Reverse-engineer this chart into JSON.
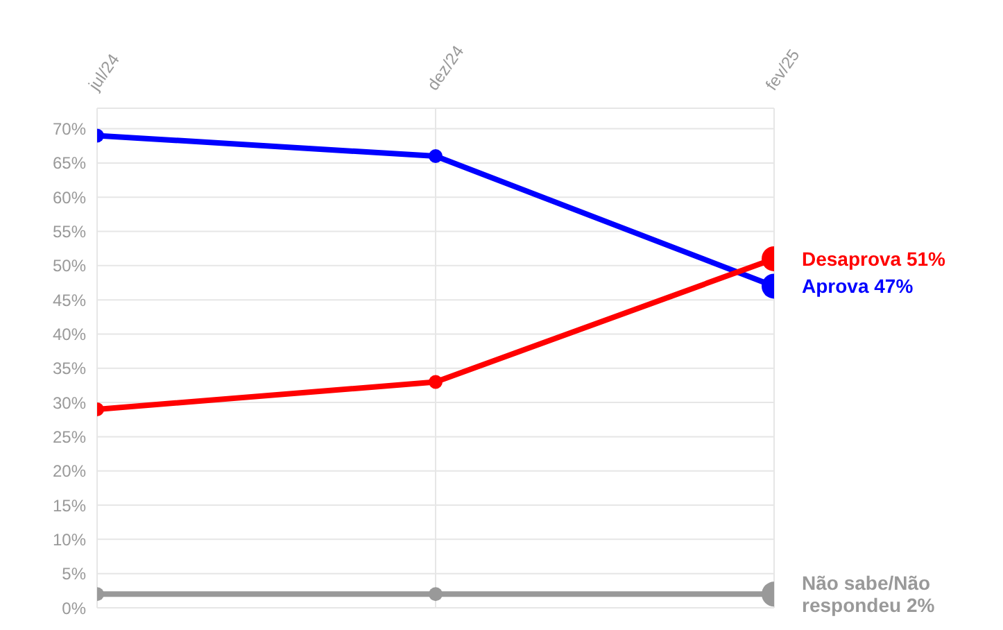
{
  "chart_data": {
    "type": "line",
    "categories": [
      "jul/24",
      "dez/24",
      "fev/25"
    ],
    "series": [
      {
        "name": "Aprova",
        "color": "#0000ff",
        "values": [
          69,
          66,
          47
        ],
        "value_labels": [
          null,
          null,
          "47%"
        ]
      },
      {
        "name": "Desaprova",
        "color": "#ff0000",
        "values": [
          29,
          33,
          51
        ],
        "value_labels": [
          null,
          null,
          "51%"
        ]
      },
      {
        "name": "Não sabe/Não respondeu",
        "color": "#999999",
        "values": [
          2,
          2,
          2
        ],
        "value_labels": [
          null,
          null,
          "2%"
        ]
      }
    ],
    "ylim": [
      0,
      73
    ],
    "yticks": [
      {
        "value": 0,
        "label": "0%"
      },
      {
        "value": 5,
        "label": "5%"
      },
      {
        "value": 10,
        "label": "10%"
      },
      {
        "value": 15,
        "label": "15%"
      },
      {
        "value": 20,
        "label": "20%"
      },
      {
        "value": 25,
        "label": "25%"
      },
      {
        "value": 30,
        "label": "30%"
      },
      {
        "value": 35,
        "label": "35%"
      },
      {
        "value": 40,
        "label": "40%"
      },
      {
        "value": 45,
        "label": "45%"
      },
      {
        "value": 50,
        "label": "50%"
      },
      {
        "value": 55,
        "label": "55%"
      },
      {
        "value": 60,
        "label": "60%"
      },
      {
        "value": 65,
        "label": "65%"
      },
      {
        "value": 70,
        "label": "70%"
      }
    ],
    "grid": true,
    "legend": false,
    "marker": "circle",
    "line_style": "solid"
  }
}
